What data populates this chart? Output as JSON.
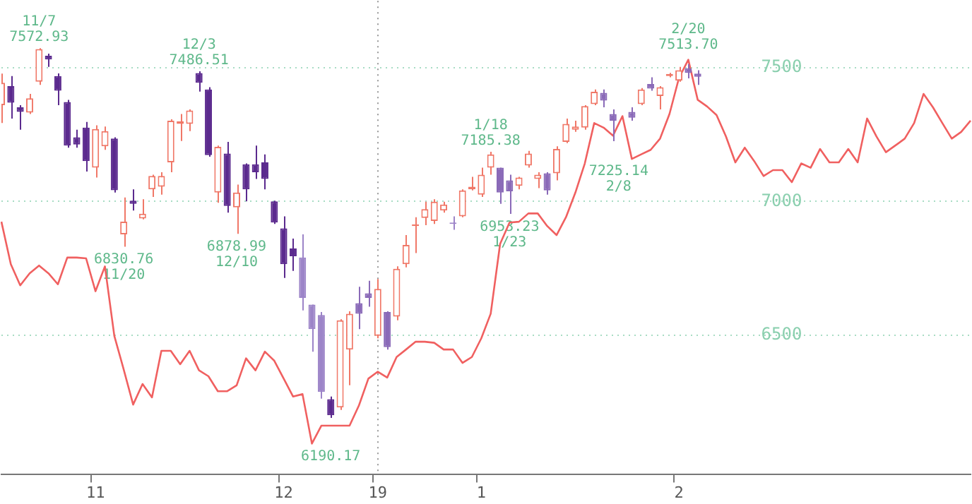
{
  "chart_data": {
    "type": "candlestick",
    "categories": [
      null,
      null,
      null,
      null,
      null,
      null,
      null,
      null,
      null,
      null,
      "11",
      null,
      null,
      null,
      null,
      null,
      null,
      null,
      null,
      null,
      null,
      null,
      null,
      null,
      null,
      null,
      null,
      null,
      null,
      null,
      "12",
      null,
      null,
      null,
      null,
      null,
      null,
      null,
      null,
      null,
      "19",
      null,
      null,
      null,
      null,
      null,
      null,
      null,
      null,
      null,
      null,
      "1",
      null,
      null,
      null,
      null,
      null,
      null,
      null,
      null,
      null,
      null,
      null,
      null,
      null,
      null,
      null,
      null,
      null,
      null,
      null,
      null,
      "2",
      null,
      null,
      null,
      null,
      null,
      null,
      null,
      null,
      null,
      null,
      null,
      null,
      null,
      null,
      null,
      null,
      null,
      null,
      null,
      null,
      null,
      null,
      null,
      null,
      null,
      null,
      null,
      null,
      null,
      null,
      null
    ],
    "ohlc": [
      [
        7360,
        7478,
        7293,
        7444
      ],
      [
        7431,
        7469,
        7310,
        7369
      ],
      [
        7352,
        7360,
        7268,
        7335
      ],
      [
        7332,
        7402,
        7327,
        7386
      ],
      [
        7448,
        7572.93,
        7436,
        7570
      ],
      [
        7545,
        7553,
        7503,
        7531
      ],
      [
        7469,
        7479,
        7360,
        7414
      ],
      [
        7372,
        7380,
        7201,
        7209
      ],
      [
        7240,
        7268,
        7201,
        7213
      ],
      [
        7276,
        7297,
        7112,
        7151
      ],
      [
        7126,
        7285,
        7089,
        7271
      ],
      [
        7206,
        7280,
        7193,
        7263
      ],
      [
        7235,
        7240,
        7033,
        7042
      ],
      [
        6877,
        7015,
        6830.76,
        6924
      ],
      [
        7003,
        7045,
        6966,
        6991
      ],
      [
        6936,
        7008,
        6933,
        6954
      ],
      [
        7045,
        7100,
        7017,
        7095
      ],
      [
        7055,
        7109,
        7025,
        7095
      ],
      [
        7146,
        7307,
        7109,
        7302
      ],
      [
        7290,
        7327,
        7226,
        7300
      ],
      [
        7290,
        7344,
        7263,
        7340
      ],
      [
        7480,
        7486.51,
        7411,
        7444
      ],
      [
        7419,
        7427,
        7167,
        7173
      ],
      [
        7033,
        7209,
        6995,
        7204
      ],
      [
        7179,
        7223,
        6958,
        6983
      ],
      [
        6978,
        7063,
        6878.99,
        7033
      ],
      [
        7139,
        7142,
        7000,
        7045
      ],
      [
        7139,
        7209,
        7084,
        7109
      ],
      [
        7146,
        7176,
        7045,
        7084
      ],
      [
        7000,
        7003,
        6916,
        6921
      ],
      [
        6899,
        6944,
        6714,
        6765
      ],
      [
        6824,
        6861,
        6740,
        6795
      ],
      [
        6790,
        6877,
        6592,
        6639
      ],
      [
        6614,
        6614,
        6438,
        6522
      ],
      [
        6575,
        6586,
        6262,
        6287
      ],
      [
        6260,
        6270,
        6190.17,
        6200
      ],
      [
        6229,
        6559,
        6220,
        6555
      ],
      [
        6446,
        6589,
        6312,
        6580
      ],
      [
        6619,
        6681,
        6522,
        6580
      ],
      [
        6656,
        6703,
        6606,
        6639
      ],
      [
        6497,
        6710,
        6488,
        6673
      ],
      [
        6586,
        6589,
        6446,
        6455
      ],
      [
        6569,
        6757,
        6555,
        6748
      ],
      [
        6765,
        6874,
        6753,
        6837
      ],
      [
        6908,
        6941,
        6807,
        6914
      ],
      [
        6938,
        6999,
        6911,
        6971
      ],
      [
        6927,
        7008,
        6916,
        6999
      ],
      [
        6966,
        6999,
        6958,
        6988
      ],
      [
        6921,
        6944,
        6894,
        6916
      ],
      [
        6944,
        7045,
        6941,
        7041
      ],
      [
        7045,
        7092,
        7041,
        7055
      ],
      [
        7025,
        7126,
        7017,
        7100
      ],
      [
        7126,
        7185.38,
        7100,
        7176
      ],
      [
        7126,
        7126,
        6991,
        7033
      ],
      [
        7079,
        7100,
        6953.23,
        7038
      ],
      [
        7058,
        7092,
        7045,
        7089
      ],
      [
        7134,
        7189,
        7126,
        7179
      ],
      [
        7084,
        7109,
        7050,
        7100
      ],
      [
        7105,
        7109,
        7025,
        7041
      ],
      [
        7105,
        7206,
        7079,
        7196
      ],
      [
        7223,
        7310,
        7218,
        7290
      ],
      [
        7268,
        7302,
        7260,
        7280
      ],
      [
        7276,
        7360,
        7268,
        7357
      ],
      [
        7364,
        7419,
        7360,
        7410
      ],
      [
        7406,
        7419,
        7352,
        7377
      ],
      [
        7327,
        7344,
        7225.14,
        7302
      ],
      null,
      [
        7335,
        7352,
        7302,
        7313
      ],
      [
        7364,
        7424,
        7360,
        7419
      ],
      [
        7439,
        7464,
        7414,
        7422
      ],
      [
        7394,
        7431,
        7344,
        7427
      ],
      [
        7469,
        7481,
        7464,
        7477
      ],
      [
        7452,
        7503,
        7448,
        7491
      ],
      [
        7498,
        7513.7,
        7460,
        7481
      ],
      [
        7478,
        7491,
        7436,
        7466
      ],
      null,
      null,
      null,
      null,
      null,
      null,
      null,
      null,
      null,
      null,
      null,
      null,
      null,
      null,
      null,
      null,
      null,
      null,
      null,
      null,
      null,
      null,
      null,
      null,
      null,
      null,
      null,
      null,
      null
    ],
    "colors": [
      "#f07868",
      "#5b2a8e",
      "#5b2a8e",
      "#f07868",
      "#f07868",
      "#5b2a8e",
      "#5b2a8e",
      "#5b2a8e",
      "#5b2a8e",
      "#5b2a8e",
      "#f07868",
      "#f07868",
      "#5b2a8e",
      "#f07868",
      "#5b2a8e",
      "#f07868",
      "#f07868",
      "#f07868",
      "#f07868",
      "#f07868",
      "#f07868",
      "#5b2a8e",
      "#5b2a8e",
      "#f07868",
      "#5b2a8e",
      "#f07868",
      "#5b2a8e",
      "#5b2a8e",
      "#5b2a8e",
      "#5b2a8e",
      "#5b2a8e",
      "#5b2a8e",
      "#9c84c8",
      "#9c84c8",
      "#9c84c8",
      "#5b2a8e",
      "#f07868",
      "#f07868",
      "#8a6ab8",
      "#8a6ab8",
      "#f07868",
      "#8a6ab8",
      "#f07868",
      "#f07868",
      "#f07868",
      "#f07868",
      "#f07868",
      "#f07868",
      "#9c84c8",
      "#f07868",
      "#f07868",
      "#f07868",
      "#f07868",
      "#8a6ab8",
      "#8a6ab8",
      "#f07868",
      "#f07868",
      "#f07868",
      "#8a6ab8",
      "#f07868",
      "#f07868",
      "#f07868",
      "#f07868",
      "#f07868",
      "#8a6ab8",
      "#8a6ab8",
      null,
      "#8a6ab8",
      "#f07868",
      "#8a6ab8",
      "#f07868",
      "#f07868",
      "#f07868",
      "#8a6ab8",
      "#8a6ab8",
      null,
      null,
      null,
      null,
      null,
      null,
      null,
      null,
      null,
      null,
      null,
      null,
      null,
      null,
      null,
      null,
      null,
      null,
      null,
      null,
      null,
      null,
      null,
      null,
      null,
      null,
      null,
      null,
      null
    ],
    "series": [
      {
        "type": "line",
        "color": "#f06060",
        "values": [
          6924,
          6765,
          6686,
          6731,
          6760,
          6731,
          6690,
          6790,
          6790,
          6787,
          6664,
          6757,
          6497,
          6371,
          6240,
          6317,
          6267,
          6441,
          6441,
          6391,
          6441,
          6368,
          6346,
          6290,
          6290,
          6312,
          6413,
          6368,
          6438,
          6404,
          6337,
          6270,
          6279,
          6094,
          6161,
          6161,
          6161,
          6161,
          6237,
          6337,
          6363,
          6341,
          6418,
          6446,
          6475,
          6475,
          6471,
          6446,
          6446,
          6396,
          6418,
          6488,
          6580,
          6841,
          6921,
          6924,
          6955,
          6955,
          6908,
          6874,
          6941,
          7033,
          7142,
          7293,
          7276,
          7246,
          7319,
          7159,
          7176,
          7193,
          7235,
          7327,
          7461,
          7530,
          7380,
          7355,
          7323,
          7243,
          7146,
          7201,
          7151,
          7095,
          7117,
          7117,
          7072,
          7142,
          7126,
          7196,
          7146,
          7146,
          7196,
          7146,
          7310,
          7243,
          7184,
          7209,
          7235,
          7293,
          7402,
          7352,
          7293,
          7235,
          7260,
          7302
        ]
      }
    ],
    "ylim": [
      5980,
      7750
    ],
    "yticks": [
      6500,
      7000,
      7500
    ],
    "grid": "y",
    "ref_lines": [
      {
        "axis": "x",
        "value": "19",
        "color": "#999999",
        "line_style": "dotted"
      }
    ],
    "annotations": [
      {
        "text": "11/7\n7572.93",
        "y": 7572.93
      },
      {
        "text": "12/3\n7486.51",
        "y": 7486.51
      },
      {
        "text": "6830.76\n11/20",
        "y": 6830.76
      },
      {
        "text": "6878.99\n12/10",
        "y": 6878.99
      },
      {
        "text": "6190.17",
        "y": 6190.17
      },
      {
        "text": "1/18\n7185.38",
        "y": 7185.38
      },
      {
        "text": "6953.23\n1/23",
        "y": 6953.23
      },
      {
        "text": "7225.14\n2/8",
        "y": 7225.14
      },
      {
        "text": "2/20\n7513.70",
        "y": 7513.7
      }
    ]
  }
}
